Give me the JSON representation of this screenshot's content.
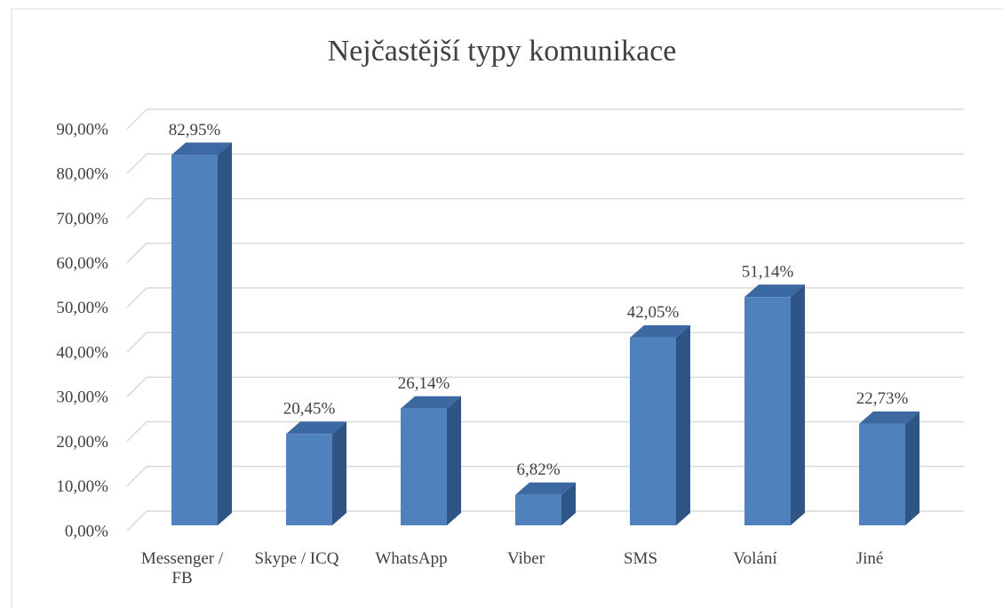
{
  "chart_data": {
    "type": "bar3d",
    "title": "Nejčastější typy komunikace",
    "categories": [
      "Messenger / FB",
      "Skype / ICQ",
      "WhatsApp",
      "Viber",
      "SMS",
      "Volání",
      "Jiné"
    ],
    "values": [
      82.95,
      20.45,
      26.14,
      6.82,
      42.05,
      51.14,
      22.73
    ],
    "value_labels": [
      "82,95%",
      "20,45%",
      "26,14%",
      "6,82%",
      "42,05%",
      "51,14%",
      "22,73%"
    ],
    "color": "#4f81bd",
    "ylim": [
      0,
      90
    ],
    "yticks": [
      {
        "value": 0,
        "label": "0,00%"
      },
      {
        "value": 10,
        "label": "10,00%"
      },
      {
        "value": 20,
        "label": "20,00%"
      },
      {
        "value": 30,
        "label": "30,00%"
      },
      {
        "value": 40,
        "label": "40,00%"
      },
      {
        "value": 50,
        "label": "50,00%"
      },
      {
        "value": 60,
        "label": "60,00%"
      },
      {
        "value": 70,
        "label": "70,00%"
      },
      {
        "value": 80,
        "label": "80,00%"
      },
      {
        "value": 90,
        "label": "90,00%"
      }
    ],
    "grid": true
  }
}
